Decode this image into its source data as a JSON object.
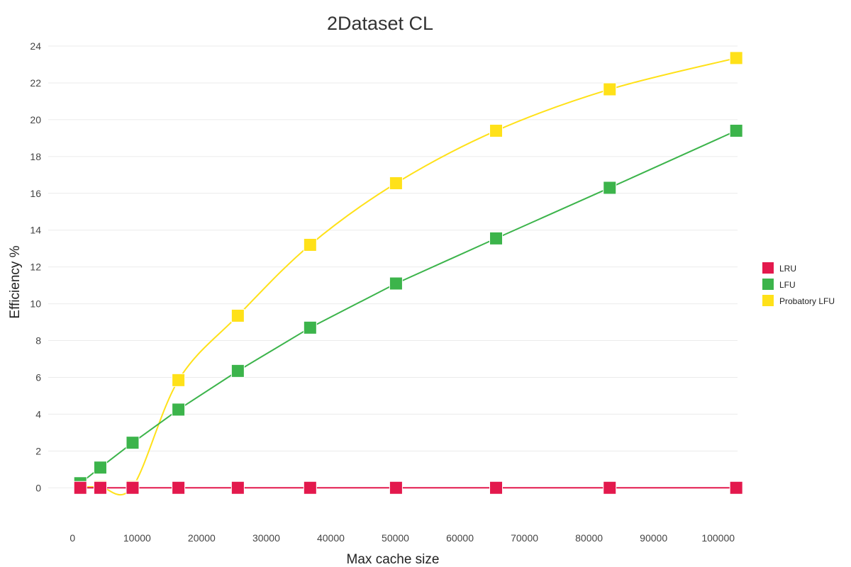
{
  "chart_data": {
    "type": "line",
    "title": "2Dataset CL",
    "xlabel": "Max cache size",
    "ylabel": "Efficiency %",
    "xlim": [
      -3000,
      103000
    ],
    "ylim": [
      -1.8,
      24
    ],
    "xticks": [
      0,
      10000,
      20000,
      30000,
      40000,
      50000,
      60000,
      70000,
      80000,
      90000,
      100000
    ],
    "yticks": [
      0,
      2,
      4,
      6,
      8,
      10,
      12,
      14,
      16,
      18,
      20,
      22,
      24
    ],
    "grid": "horizontal",
    "legend_position": "right",
    "series": [
      {
        "name": "LRU",
        "color": "#e3194d",
        "smooth": false,
        "x": [
          1200,
          4300,
          9300,
          16400,
          25600,
          36800,
          50100,
          65600,
          83200,
          102800
        ],
        "values": [
          0,
          0,
          0,
          0,
          0,
          0,
          0,
          0,
          0,
          0
        ]
      },
      {
        "name": "LFU",
        "color": "#3cb44b",
        "smooth": false,
        "x": [
          1200,
          4300,
          9300,
          16400,
          25600,
          36800,
          50100,
          65600,
          83200,
          102800
        ],
        "values": [
          0.25,
          1.1,
          2.45,
          4.25,
          6.35,
          8.7,
          11.1,
          13.55,
          16.3,
          19.4
        ]
      },
      {
        "name": "Probatory LFU",
        "color": "#ffe119",
        "smooth": true,
        "x": [
          1200,
          4300,
          9300,
          16400,
          25600,
          36800,
          50100,
          65600,
          83200,
          102800
        ],
        "values": [
          0.05,
          0.05,
          0.05,
          5.85,
          9.35,
          13.2,
          16.55,
          19.4,
          21.65,
          23.35
        ]
      }
    ]
  }
}
